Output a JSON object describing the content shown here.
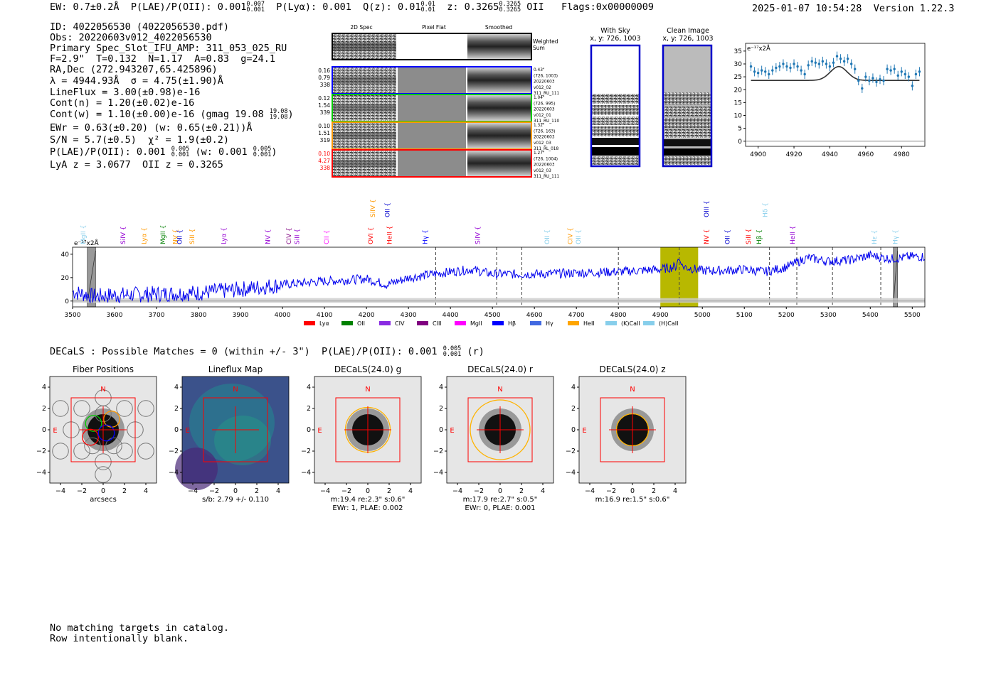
{
  "header": {
    "ew": "EW: 0.7±0.2Å",
    "plae": "P(LAE)/P(OII): 0.001",
    "plae_hi": "0.007",
    "plae_lo": "0.001",
    "plya": "P(Lyα): 0.001",
    "qz": "Q(z): 0.01",
    "qz_hi": "0.01",
    "qz_lo": "0.01",
    "z": "z: 0.3265",
    "z_hi": "0.3265",
    "z_lo": "0.3265",
    "z_line": "OII",
    "flags": "Flags:0x00000009",
    "timestamp": "2025-01-07 10:54:28",
    "version": "Version 1.22.3"
  },
  "info": {
    "id": "ID: 4022056530 (4022056530.pdf)",
    "obs": "Obs: 20220603v012_4022056530",
    "primary": "Primary Spec_Slot_IFU_AMP: 311_053_025_RU",
    "fit": "F=2.9\"  T=0.132  N=1.17  A=0.83  g=24.1",
    "radec": "RA,Dec (272.943207,65.425896)",
    "lambda": "λ = 4944.93Å  σ = 4.75(±1.90)Å",
    "lineflux": "LineFlux = 3.00(±0.98)e-16",
    "contn": "Cont(n) = 1.20(±0.02)e-16",
    "contw": "Cont(w) = 1.10(±0.00)e-16 (gmag 19.08",
    "contw_hi": "19.08",
    "contw_lo": "19.08",
    "ewr": "EWr = 0.63(±0.20) (w: 0.65(±0.21))Å",
    "sn": "S/N = 5.7(±0.5)  χ² = 1.9(±0.2)",
    "plae2": "P(LAE)/P(OII): 0.001",
    "plae2_hi": "0.005",
    "plae2_lo": "0.001",
    "plae2_w": "(w: 0.001",
    "plae2_w_hi": "0.005",
    "plae2_w_lo": "0.001",
    "lyaz": "LyA z = 3.0677  OII z = 0.3265"
  },
  "cutouts": {
    "col_titles": [
      "2D Spec",
      "Pixel Flat",
      "Smoothed"
    ],
    "weighted_sum": "Weighted Sum",
    "rows": [
      {
        "vals": [
          "0.16",
          "0.79",
          "338"
        ],
        "color": "#0000ff",
        "meta": [
          "0.43\"",
          "(726, 1003)",
          "20220603",
          "v012_02",
          "311_RU_111"
        ]
      },
      {
        "vals": [
          "0.12",
          "1.54",
          "339"
        ],
        "color": "#00cc00",
        "meta": [
          "1.04\"",
          "(726, 995)",
          "20220603",
          "v012_01",
          "311_RU_110"
        ]
      },
      {
        "vals": [
          "0.10",
          "1.51",
          "319"
        ],
        "color": "#ff9900",
        "meta": [
          "1.32\"",
          "(726, 163)",
          "20220603",
          "v012_03",
          "311_RL_018"
        ]
      },
      {
        "vals": [
          "0.10",
          "4.27",
          "338"
        ],
        "color": "#ff0000",
        "meta": [
          "1.27\"",
          "(726, 1004)",
          "20220603",
          "v012_03",
          "311_RU_111"
        ]
      }
    ],
    "with_sky": "With Sky",
    "with_sky_xy": "x, y: 726, 1003",
    "clean_image": "Clean Image",
    "clean_xy": "x, y: 726, 1003"
  },
  "zoom_chart": {
    "type": "line",
    "unit": "e⁻¹⁷x2Å",
    "xlim": [
      4893,
      4993
    ],
    "ylim": [
      -2,
      38
    ],
    "xticks": [
      4900,
      4920,
      4940,
      4960,
      4980
    ],
    "yticks": [
      0,
      5,
      10,
      15,
      20,
      25,
      30,
      35
    ],
    "data_x": [
      4896,
      4898,
      4900,
      4902,
      4904,
      4906,
      4908,
      4910,
      4912,
      4914,
      4916,
      4918,
      4920,
      4922,
      4924,
      4926,
      4928,
      4930,
      4932,
      4934,
      4936,
      4938,
      4940,
      4942,
      4944,
      4946,
      4948,
      4950,
      4952,
      4954,
      4956,
      4958,
      4960,
      4962,
      4964,
      4966,
      4968,
      4970,
      4972,
      4974,
      4976,
      4978,
      4980,
      4982,
      4984,
      4986,
      4988,
      4990
    ],
    "data_y": [
      29,
      27,
      26.5,
      27.5,
      27,
      26,
      27.5,
      28.5,
      29,
      30,
      29,
      28.5,
      30,
      29,
      27.5,
      26,
      29.5,
      31,
      30.5,
      30,
      31,
      30,
      29,
      30.5,
      33,
      32,
      31,
      32,
      30,
      28,
      23.5,
      20.5,
      25,
      23.5,
      24.5,
      23,
      24,
      23.5,
      28,
      27.5,
      28,
      25.5,
      27,
      26,
      25,
      21.5,
      26,
      27
    ],
    "fit_baseline": 23.6,
    "fit_peak": 29,
    "fit_center": 4945,
    "fit_sigma": 4.75
  },
  "chart_data": {
    "type": "line",
    "title": "",
    "unit": "e⁻¹⁷x2Å",
    "xlim": [
      3500,
      5530
    ],
    "ylim": [
      -5,
      46
    ],
    "xticks": [
      3500,
      3600,
      3700,
      3800,
      3900,
      4000,
      4100,
      4200,
      4300,
      4400,
      4500,
      4600,
      4700,
      4800,
      4900,
      5000,
      5100,
      5200,
      5300,
      5400,
      5500
    ],
    "yticks": [
      0,
      20,
      40
    ],
    "anchors_x": [
      3500,
      3550,
      3600,
      3700,
      3800,
      3900,
      4000,
      4100,
      4200,
      4250,
      4300,
      4400,
      4450,
      4500,
      4600,
      4700,
      4800,
      4900,
      4945,
      5000,
      5050,
      5100,
      5150,
      5200,
      5250,
      5300,
      5350,
      5400,
      5450,
      5500,
      5530
    ],
    "anchors_y": [
      8,
      4,
      5,
      6,
      7,
      10,
      14,
      17,
      19,
      14,
      20,
      25,
      27,
      23,
      23,
      24,
      25,
      27,
      30,
      26,
      26,
      27,
      25,
      29,
      37,
      34,
      35,
      39,
      36,
      38,
      38
    ],
    "masked_regions": [
      [
        3535,
        3555
      ],
      [
        5455,
        5465
      ]
    ],
    "highlight_region": [
      4900,
      4990
    ],
    "emission_line": 4945,
    "dashed_lines": [
      4365,
      4510,
      4570,
      4800,
      4945,
      5160,
      5225,
      5310,
      5425
    ],
    "top_labels": [
      {
        "x": 3525,
        "label": "MgII",
        "color": "#87ceeb",
        "row": 2
      },
      {
        "x": 3620,
        "label": "SiIV",
        "color": "#9400d3",
        "row": 2
      },
      {
        "x": 3670,
        "label": "Lyα",
        "color": "#ff9900",
        "row": 2
      },
      {
        "x": 3715,
        "label": "MgII",
        "color": "#008000",
        "row": 2
      },
      {
        "x": 3745,
        "label": "NV",
        "color": "#ff9900",
        "row": 2
      },
      {
        "x": 3785,
        "label": "SiII",
        "color": "#ff9900",
        "row": 2
      },
      {
        "x": 3755,
        "label": "OII",
        "color": "#0000cd",
        "row": 2
      },
      {
        "x": 3860,
        "label": "Lyα",
        "color": "#9400d3",
        "row": 2
      },
      {
        "x": 3965,
        "label": "NV",
        "color": "#9400d3",
        "row": 2
      },
      {
        "x": 4015,
        "label": "CIV",
        "color": "#800080",
        "row": 2
      },
      {
        "x": 4035,
        "label": "SiII",
        "color": "#9400d3",
        "row": 2
      },
      {
        "x": 4105,
        "label": "CII",
        "color": "#ff00ff",
        "row": 2
      },
      {
        "x": 4210,
        "label": "OVI",
        "color": "#ff0000",
        "row": 2
      },
      {
        "x": 4255,
        "label": "HeII",
        "color": "#ff0000",
        "row": 2
      },
      {
        "x": 4215,
        "label": "SiIV",
        "color": "#ff9900",
        "row": 0
      },
      {
        "x": 4250,
        "label": "OII",
        "color": "#0000cd",
        "row": 0
      },
      {
        "x": 4340,
        "label": "Hγ",
        "color": "#0000ff",
        "row": 2
      },
      {
        "x": 4465,
        "label": "SiIV",
        "color": "#9400d3",
        "row": 2
      },
      {
        "x": 4630,
        "label": "OII",
        "color": "#87ceeb",
        "row": 2
      },
      {
        "x": 4685,
        "label": "CIV",
        "color": "#ff9900",
        "row": 2
      },
      {
        "x": 4705,
        "label": "OII",
        "color": "#87ceeb",
        "row": 2
      },
      {
        "x": 5010,
        "label": "OIII",
        "color": "#0000cd",
        "row": 0
      },
      {
        "x": 5010,
        "label": "NV",
        "color": "#ff0000",
        "row": 2
      },
      {
        "x": 5060,
        "label": "OII",
        "color": "#0000cd",
        "row": 2
      },
      {
        "x": 5110,
        "label": "SiII",
        "color": "#ff0000",
        "row": 2
      },
      {
        "x": 5135,
        "label": "Hβ",
        "color": "#008000",
        "row": 2
      },
      {
        "x": 5150,
        "label": "Hδ",
        "color": "#87ceeb",
        "row": 0
      },
      {
        "x": 5215,
        "label": "HeII",
        "color": "#9400d3",
        "row": 2
      },
      {
        "x": 5410,
        "label": "Hε",
        "color": "#87ceeb",
        "row": 2
      },
      {
        "x": 5460,
        "label": "Hγ",
        "color": "#87ceeb",
        "row": 2
      }
    ],
    "legend": [
      {
        "label": "Lyα",
        "color": "#ff0000"
      },
      {
        "label": "OII",
        "color": "#008000"
      },
      {
        "label": "CIV",
        "color": "#8a2be2"
      },
      {
        "label": "CIII",
        "color": "#800080"
      },
      {
        "label": "MgII",
        "color": "#ff00ff"
      },
      {
        "label": "Hβ",
        "color": "#0000ff"
      },
      {
        "label": "Hγ",
        "color": "#4169e1"
      },
      {
        "label": "HeII",
        "color": "#ffa500"
      },
      {
        "label": "(K)CaII",
        "color": "#87ceeb"
      },
      {
        "label": "(H)CaII",
        "color": "#87ceeb"
      }
    ]
  },
  "decals_header": "DECaLS : Possible Matches = 0 (within +/- 3\")  P(LAE)/P(OII): 0.001",
  "decals_hi": "0.005",
  "decals_lo": "0.001",
  "decals_band": "(r)",
  "panels": [
    {
      "title": "Fiber Positions",
      "xlabel": "arcsecs",
      "sub": "",
      "kind": "fiber"
    },
    {
      "title": "Lineflux Map",
      "xlabel": "s/b: 2.79 +/- 0.110",
      "sub": "",
      "kind": "lineflux"
    },
    {
      "title": "DECaLS(24.0) g",
      "xlabel": "m:19.4  re:2.3\"  s:0.6\"",
      "sub": "EWr: 1, PLAE: 0.002",
      "kind": "decals"
    },
    {
      "title": "DECaLS(24.0) r",
      "xlabel": "m:17.9  re:2.7\"  s:0.5\"",
      "sub": "EWr: 0, PLAE: 0.001",
      "kind": "decals"
    },
    {
      "title": "DECaLS(24.0) z",
      "xlabel": "m:16.9  re:1.5\"  s:0.6\"",
      "sub": "",
      "kind": "decals"
    }
  ],
  "panel_axis": {
    "ticks": [
      -4,
      -2,
      0,
      2,
      4
    ],
    "tick_labels": [
      "−4",
      "−2",
      "0",
      "2",
      "4"
    ],
    "north": "N",
    "east": "E",
    "ellipse_radius": [
      2.1,
      2.8,
      1.5
    ]
  },
  "footer": {
    "line1": "No matching targets in catalog.",
    "line2": "Row intentionally blank."
  }
}
